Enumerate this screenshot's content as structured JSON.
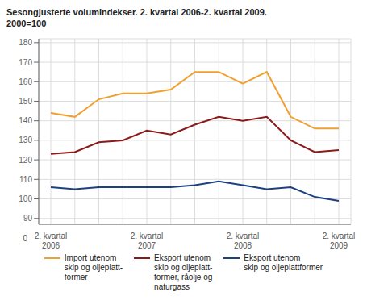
{
  "chart_data": {
    "type": "line",
    "title": "Sesongjusterte volumindekser. 2. kvartal 2006-2. kvartal 2009.",
    "subtitle": "2000=100",
    "categories": [
      "2. kvartal\n2006",
      null,
      null,
      null,
      "2. kvartal\n2007",
      null,
      null,
      null,
      "2. kvartal\n2008",
      null,
      null,
      null,
      "2. kvartal\n2009"
    ],
    "series": [
      {
        "name": "Import utenom\nskip og oljeplatt-\nformer",
        "color": "#F0A030",
        "values": [
          144,
          142,
          151,
          154,
          154,
          156,
          165,
          165,
          159,
          165,
          142,
          136,
          136
        ]
      },
      {
        "name": "Eksport utenom\nskip og oljeplatt-\nformer, råolje og\nnaturgass",
        "color": "#8B1A1A",
        "values": [
          123,
          124,
          129,
          130,
          135,
          133,
          138,
          142,
          140,
          142,
          130,
          124,
          125
        ]
      },
      {
        "name": "Eksport utenom\nskip og oljeplattformer",
        "color": "#1E4080",
        "values": [
          106,
          105,
          106,
          106,
          106,
          106,
          107,
          109,
          107,
          105,
          106,
          101,
          99
        ]
      }
    ],
    "ylim": [
      87,
      182
    ],
    "yticks": [
      90,
      100,
      110,
      120,
      130,
      140,
      150,
      160,
      170,
      180
    ],
    "grid": true,
    "legend": "bottom",
    "annotations": [
      "0"
    ]
  }
}
